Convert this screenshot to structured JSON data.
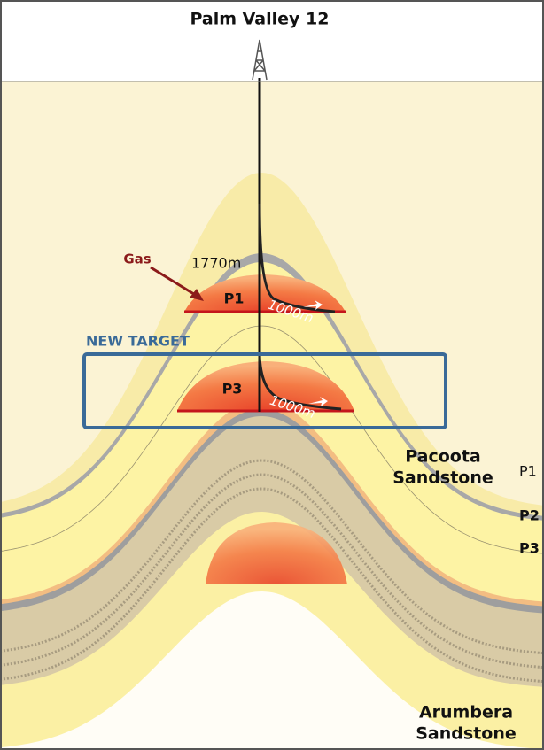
{
  "title": "Palm Valley 12",
  "labels": {
    "gas": "Gas",
    "depth": "1770m",
    "upper_zone": "P1",
    "upper_lateral": "1000m",
    "target": "NEW TARGET",
    "lower_zone": "P3",
    "lower_lateral": "1000m"
  },
  "formations": [
    {
      "name_lines": [
        "Pacoota",
        "Sandstone"
      ],
      "members": [
        "P1",
        "P2",
        "P3"
      ]
    },
    {
      "name_lines": [
        "Arumbera",
        "Sandstone"
      ]
    }
  ]
}
